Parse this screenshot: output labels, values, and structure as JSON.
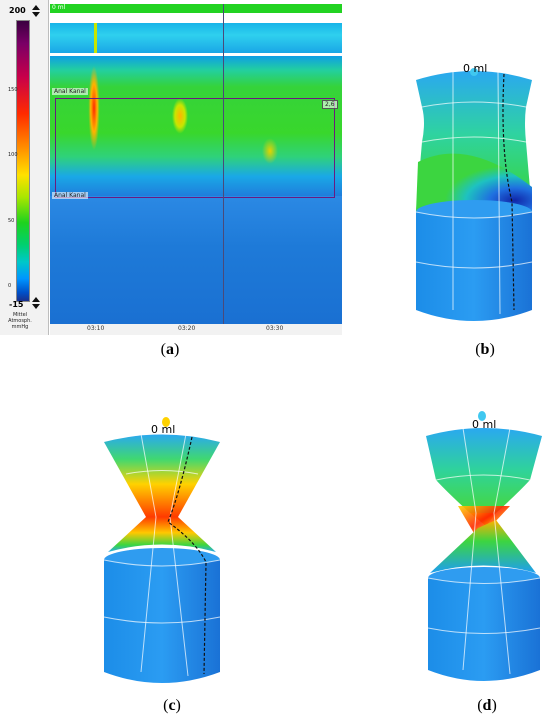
{
  "panel_a": {
    "caption": "a",
    "colorbar": {
      "max": "200",
      "min": "-15",
      "ticks": [
        "150",
        "100",
        "50",
        "0"
      ],
      "unit_lines": [
        "Mittel",
        "Atmosph.",
        "mmHg"
      ]
    },
    "top_strip_label": "0 ml",
    "anal_label_top": "Anal Kanal",
    "anal_label_bottom": "Anal Kanal",
    "marker_label": "2,6",
    "x_ticks": [
      "03:10",
      "03:20",
      "03:30"
    ]
  },
  "panel_b": {
    "caption": "b",
    "volume": "0 ml"
  },
  "panel_c": {
    "caption": "c",
    "volume": "0 ml"
  },
  "panel_d": {
    "caption": "d",
    "volume": "0 ml"
  },
  "colors": {
    "high": "#ff2a00",
    "mid": "#35d33a",
    "low": "#1e7ad8"
  }
}
